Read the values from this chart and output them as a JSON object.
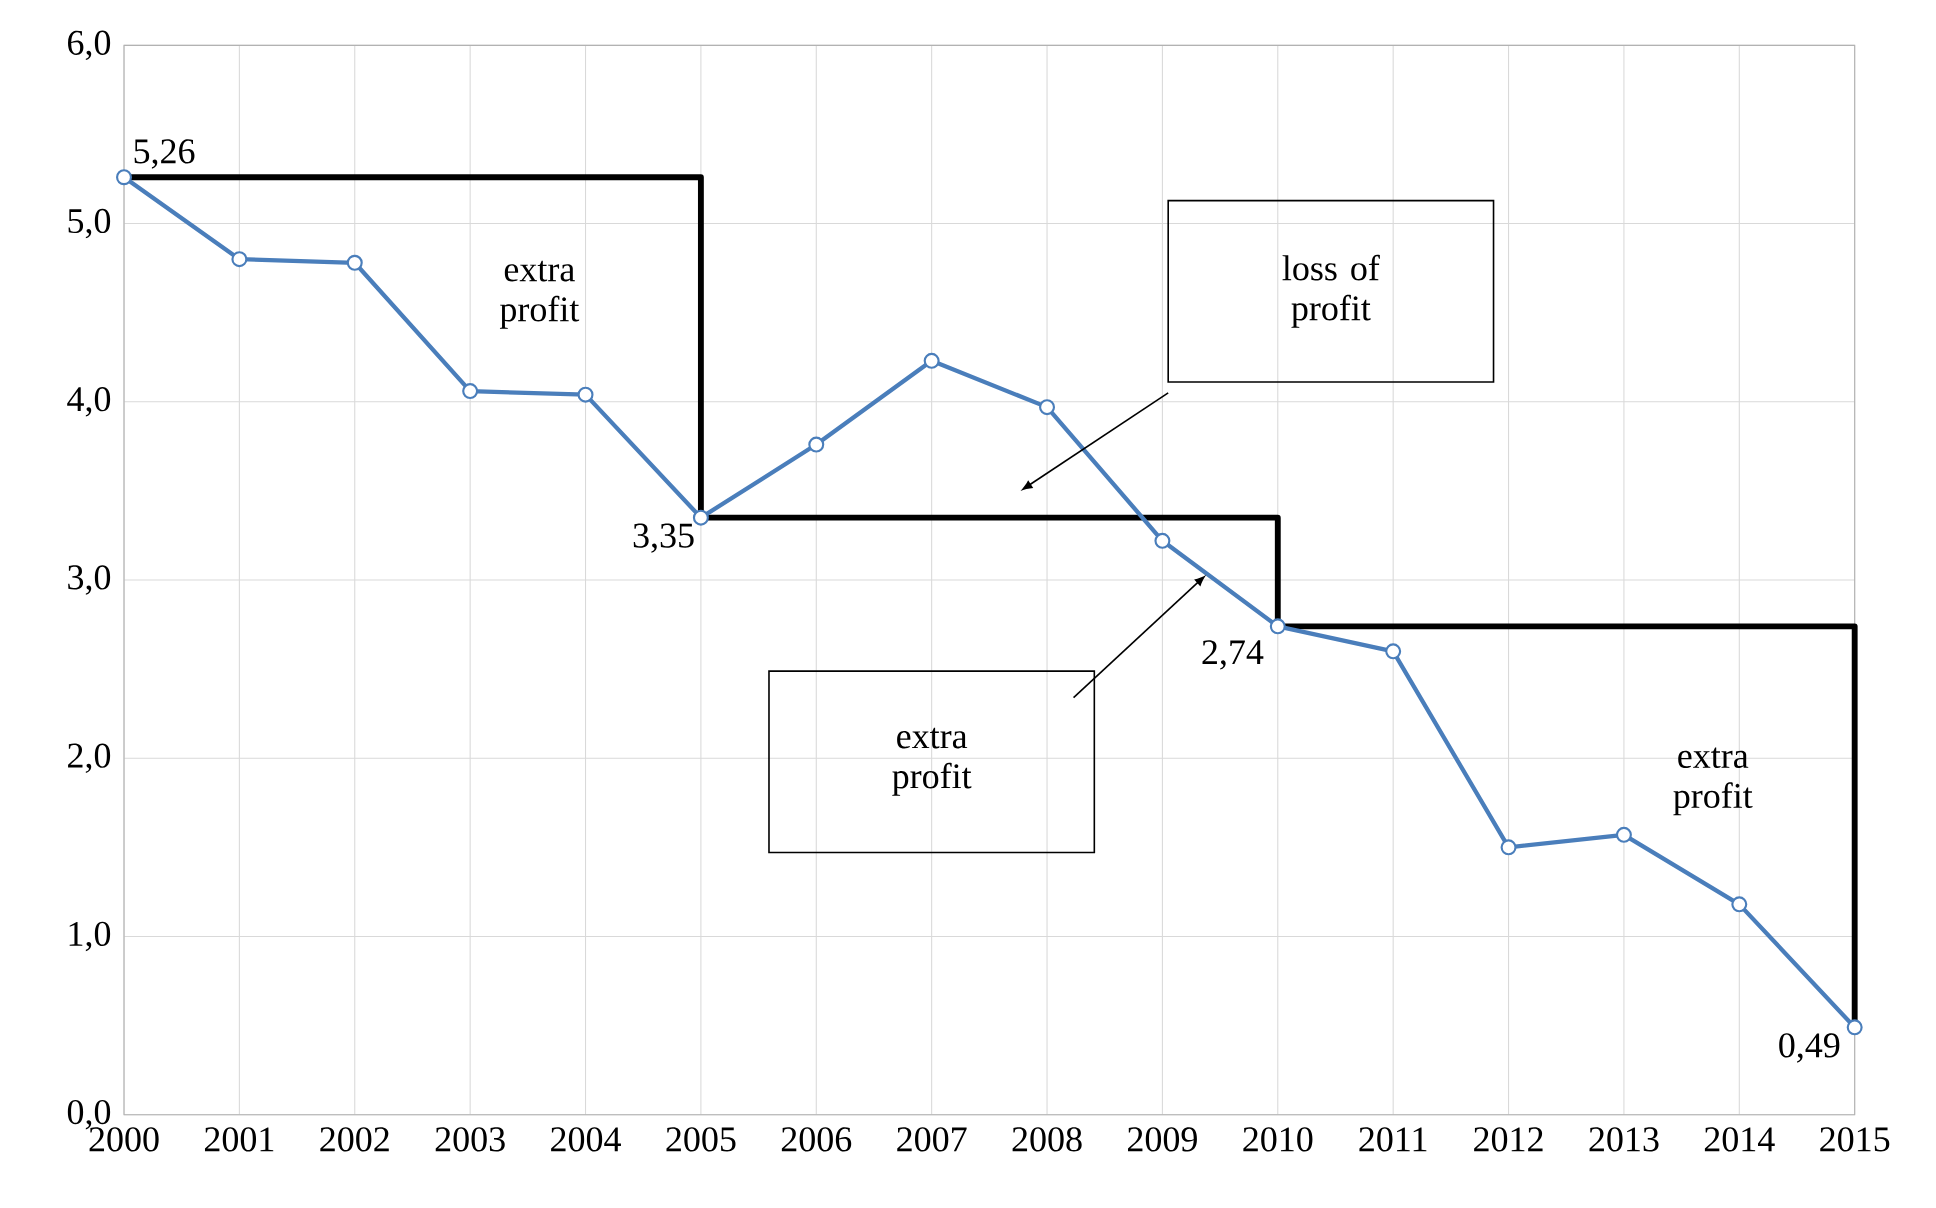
{
  "chart_data": {
    "type": "line",
    "categories": [
      "2000",
      "2001",
      "2002",
      "2003",
      "2004",
      "2005",
      "2006",
      "2007",
      "2008",
      "2009",
      "2010",
      "2011",
      "2012",
      "2013",
      "2014",
      "2015"
    ],
    "series": [
      {
        "color": "#4a7ebb",
        "marker": "circle",
        "values": [
          5.26,
          4.8,
          4.78,
          4.06,
          4.04,
          3.35,
          3.76,
          4.23,
          3.97,
          3.22,
          2.74,
          2.6,
          1.5,
          1.57,
          1.18,
          0.49
        ]
      },
      {
        "type": "step",
        "color": "#000000",
        "marker": "none",
        "values": [
          5.26,
          5.26,
          5.26,
          5.26,
          5.26,
          3.35,
          3.35,
          3.35,
          3.35,
          3.35,
          2.74,
          2.74,
          2.74,
          2.74,
          2.74,
          0.49
        ]
      }
    ],
    "ylim": [
      0,
      6
    ],
    "yticks": [
      {
        "value": 0,
        "label": "0,0"
      },
      {
        "value": 1,
        "label": "1,0"
      },
      {
        "value": 2,
        "label": "2,0"
      },
      {
        "value": 3,
        "label": "3,0"
      },
      {
        "value": 4,
        "label": "4,0"
      },
      {
        "value": 5,
        "label": "5,0"
      },
      {
        "value": 6,
        "label": "6,0"
      }
    ],
    "grid": true,
    "legend": false,
    "annotations": [
      {
        "text": "5,26",
        "x": "2000",
        "y": 5.26
      },
      {
        "text": "3,35",
        "x": "2005",
        "y": 3.35
      },
      {
        "text": "2,74",
        "x": "2010",
        "y": 2.74
      },
      {
        "text": "0,49",
        "x": "2015",
        "y": 0.49
      },
      "extra profit",
      "loss of profit",
      "extra profit",
      "extra profit"
    ]
  }
}
